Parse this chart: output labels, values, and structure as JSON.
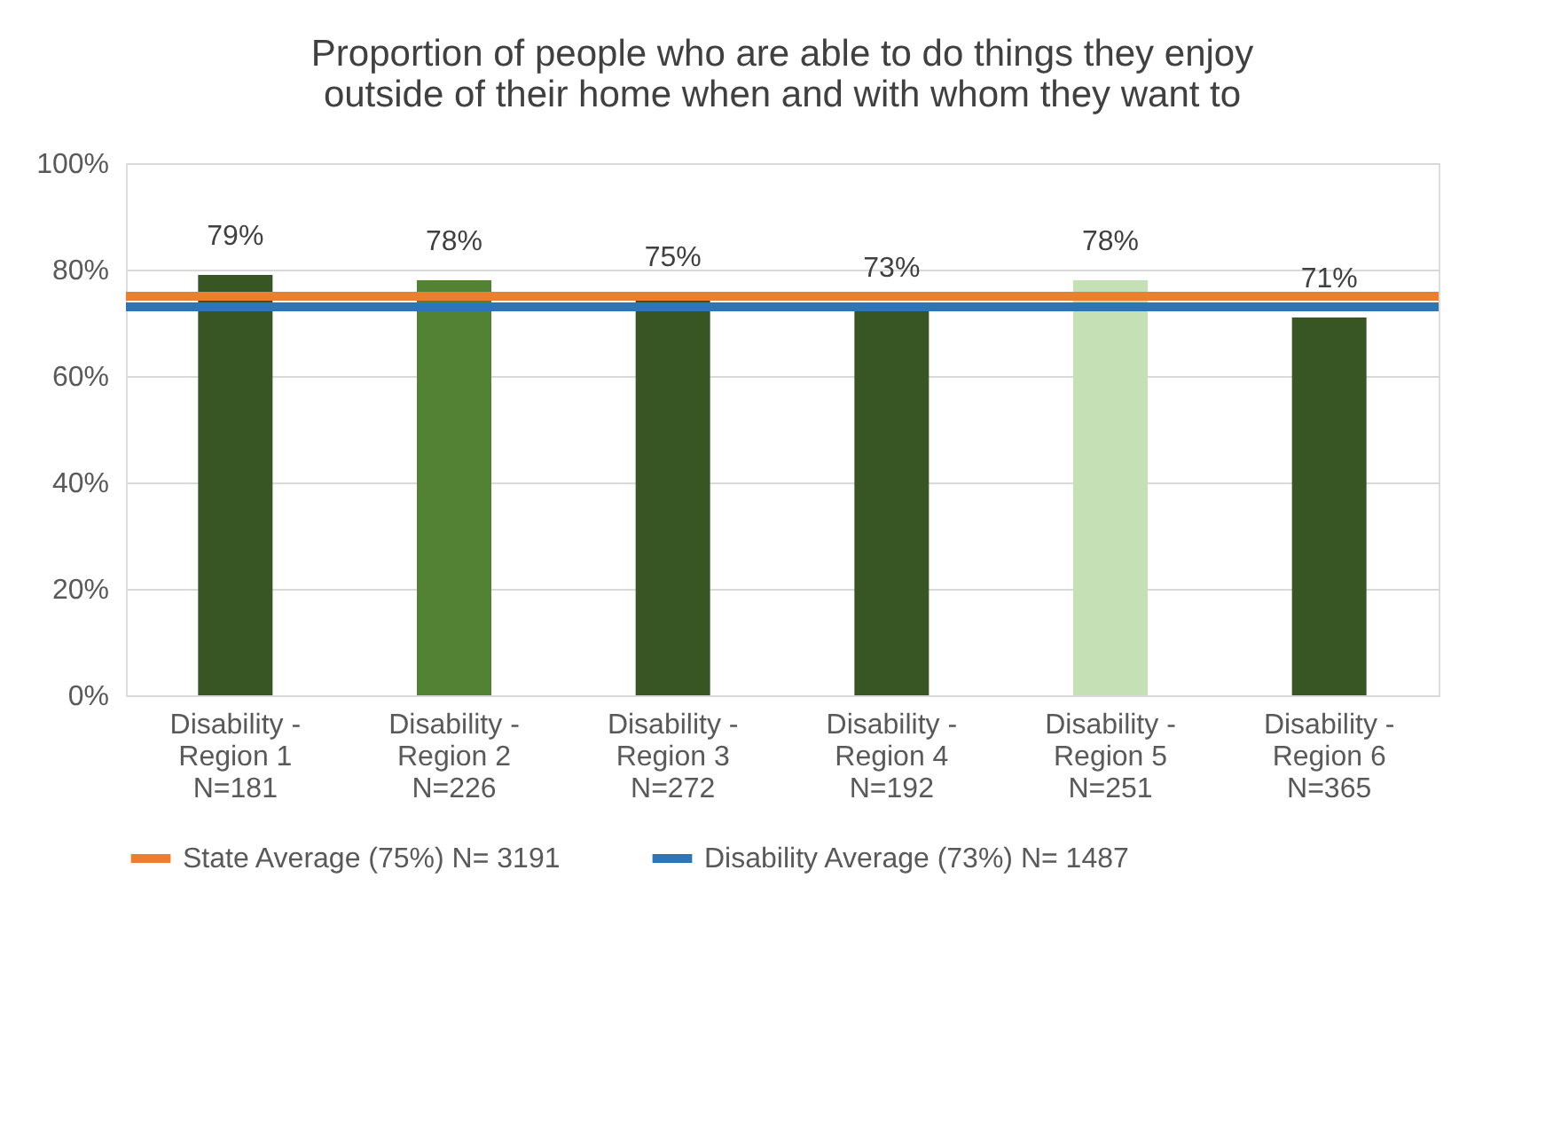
{
  "chart_data": {
    "type": "bar",
    "title": "Proportion of people who are able to do things they enjoy\noutside of their home when and with whom they want to",
    "categories": [
      "Disability -\nRegion 1\nN=181",
      "Disability -\nRegion 2\nN=226",
      "Disability -\nRegion 3\nN=272",
      "Disability -\nRegion 4\nN=192",
      "Disability -\nRegion 5\nN=251",
      "Disability -\nRegion 6\nN=365"
    ],
    "values": [
      79,
      78,
      75,
      73,
      78,
      71
    ],
    "colors": [
      "#375623",
      "#548235",
      "#375623",
      "#375623",
      "#c5e0b4",
      "#375623"
    ],
    "value_labels": [
      "79%",
      "78%",
      "75%",
      "73%",
      "78%",
      "71%"
    ],
    "ylim": [
      0,
      100
    ],
    "yticks": [
      {
        "value": 0,
        "label": "0%"
      },
      {
        "value": 20,
        "label": "20%"
      },
      {
        "value": 40,
        "label": "40%"
      },
      {
        "value": 60,
        "label": "60%"
      },
      {
        "value": 80,
        "label": "80%"
      },
      {
        "value": 100,
        "label": "100%"
      }
    ],
    "grid": "y",
    "ref_lines": [
      {
        "axis": "y",
        "value": 75,
        "label": "State Average (75%) N= 3191",
        "color": "#ed7d31"
      },
      {
        "axis": "y",
        "value": 73,
        "label": "Disability Average (73%) N= 1487",
        "color": "#2e75b6"
      }
    ],
    "legend": "bottom"
  }
}
